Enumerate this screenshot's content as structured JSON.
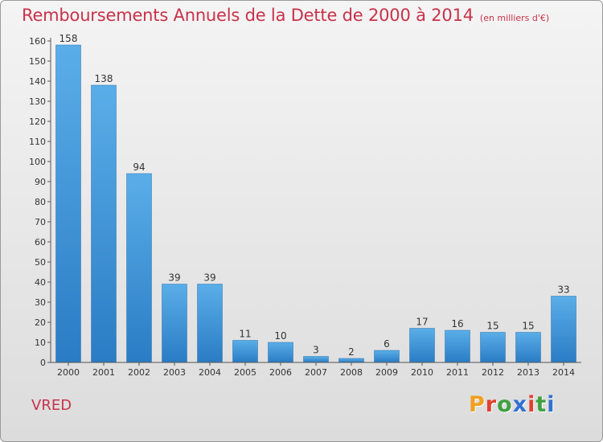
{
  "header": {
    "title": "Remboursements Annuels de la Dette de 2000 à 2014",
    "subtitle": "(en milliers d'€)"
  },
  "footer": {
    "commune": "VRED",
    "brand": "Proxiti",
    "brand_colors": [
      "#f0a020",
      "#e04030",
      "#40a040",
      "#3070d0",
      "#e04030",
      "#40a040",
      "#3070d0"
    ]
  },
  "chart_data": {
    "type": "bar",
    "categories": [
      "2000",
      "2001",
      "2002",
      "2003",
      "2004",
      "2005",
      "2006",
      "2007",
      "2008",
      "2009",
      "2010",
      "2011",
      "2012",
      "2013",
      "2014"
    ],
    "values": [
      158,
      138,
      94,
      39,
      39,
      11,
      10,
      3,
      2,
      6,
      17,
      16,
      15,
      15,
      33
    ],
    "ylim": [
      0,
      160
    ],
    "ytick_step": 10,
    "grid": false,
    "bar_color": "#3b8fd6",
    "title": "Remboursements Annuels de la Dette de 2000 à 2014",
    "xlabel": "",
    "ylabel": ""
  }
}
